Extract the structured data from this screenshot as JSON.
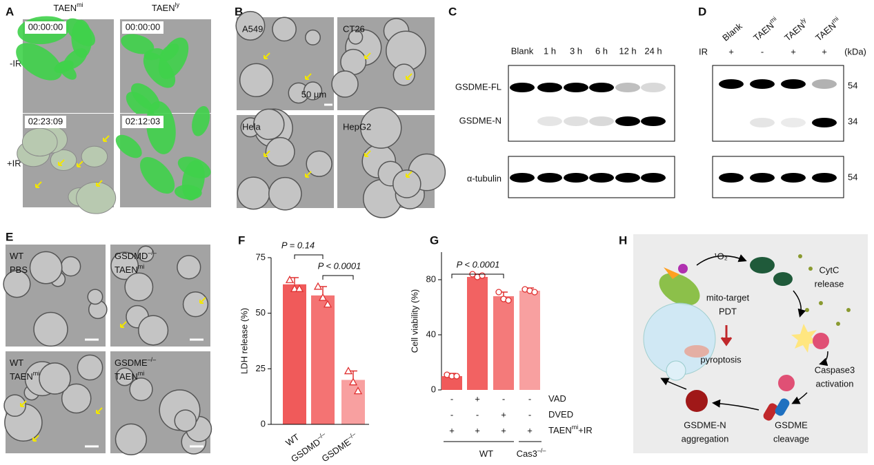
{
  "panel_a": {
    "label": "A",
    "columns": [
      {
        "text": "TAEN",
        "sup": "mi"
      },
      {
        "text": "TAEN",
        "sup": "ly"
      }
    ],
    "rows": [
      "-IR",
      "+IR"
    ],
    "timestamps": [
      "00:00:00",
      "00:00:00",
      "02:23:09",
      "02:12:03"
    ]
  },
  "panel_b": {
    "label": "B",
    "cells": [
      "A549",
      "CT26",
      "Hela",
      "HepG2"
    ],
    "scale_bar": "50 μm"
  },
  "panel_c": {
    "label": "C",
    "lanes": [
      "Blank",
      "1 h",
      "3 h",
      "6 h",
      "12 h",
      "24 h"
    ],
    "rows": [
      "GSDME-FL",
      "GSDME-N",
      "α-tubulin"
    ]
  },
  "panel_d": {
    "label": "D",
    "lanes": [
      {
        "text": "Blank"
      },
      {
        "text": "TAEN",
        "sup": "mi"
      },
      {
        "text": "TAEN",
        "sup": "ly"
      },
      {
        "text": "TAEN",
        "sup": "mi"
      }
    ],
    "ir_label": "IR",
    "ir": [
      "+",
      "-",
      "+",
      "+"
    ],
    "unit": "(kDa)",
    "markers": [
      "54",
      "34",
      "54"
    ]
  },
  "panel_e": {
    "label": "E",
    "cells": [
      [
        {
          "text": "WT"
        },
        {
          "text": "PBS"
        }
      ],
      [
        {
          "text": "GSDMD",
          "sup": "–/–"
        },
        {
          "text": "TAEN",
          "sup": "mi"
        }
      ],
      [
        {
          "text": "WT"
        },
        {
          "text": "TAEN",
          "sup": "mi"
        }
      ],
      [
        {
          "text": "GSDME",
          "sup": "–/–"
        },
        {
          "text": "TAEN",
          "sup": "mi"
        }
      ]
    ]
  },
  "chart_data": [
    {
      "type": "bar",
      "label": "F",
      "ylabel": "LDH release (%)",
      "categories": [
        {
          "text": "WT"
        },
        {
          "text": "GSDMD",
          "sup": "–/–"
        },
        {
          "text": "GSDME",
          "sup": "–/–"
        }
      ],
      "values": [
        63,
        58,
        20
      ],
      "errors": [
        3,
        4,
        4
      ],
      "points": [
        [
          65,
          61,
          61
        ],
        [
          62,
          57,
          54
        ],
        [
          24,
          19,
          15
        ]
      ],
      "colors": [
        "#f05a5a",
        "#f47373",
        "#f8a0a0"
      ],
      "ylim": [
        0,
        75
      ],
      "yticks": [
        0,
        25,
        50,
        75
      ],
      "annotations": [
        "P = 0.14",
        "P < 0.0001"
      ]
    },
    {
      "type": "bar",
      "label": "G",
      "ylabel": "Cell viability (%)",
      "values": [
        10,
        82,
        68,
        72
      ],
      "errors": [
        2,
        2,
        3,
        2
      ],
      "points": [
        [
          11,
          10,
          10
        ],
        [
          84,
          82,
          83
        ],
        [
          71,
          66,
          65
        ],
        [
          73,
          72,
          71
        ]
      ],
      "colors": [
        "#f05a5a",
        "#f26262",
        "#f47a7a",
        "#f8a0a0"
      ],
      "ylim": [
        0,
        100
      ],
      "yticks": [
        0,
        40,
        80
      ],
      "annotations": [
        "P < 0.0001"
      ],
      "treatments": [
        {
          "name": {
            "text": "VAD"
          },
          "signs": [
            "-",
            "+",
            "-",
            "-"
          ]
        },
        {
          "name": {
            "text": "DVED"
          },
          "signs": [
            "-",
            "-",
            "+",
            "-"
          ]
        },
        {
          "name": {
            "text": "TAEN",
            "sup": "mi",
            "after": "+IR"
          },
          "signs": [
            "+",
            "+",
            "+",
            "+"
          ]
        }
      ],
      "groups": [
        {
          "text": "WT"
        },
        {
          "text": "Cas3",
          "sup": "–/–"
        }
      ]
    }
  ],
  "panel_h": {
    "label": "H",
    "singlet_oxygen": "¹O₂",
    "cytc": [
      "CytC",
      "release"
    ],
    "pdt": [
      "mito-target",
      "PDT"
    ],
    "pyroptosis": "pyroptosis",
    "caspase": [
      "Caspase3",
      "activation"
    ],
    "cleavage": [
      "GSDME",
      "cleavage"
    ],
    "aggregation": [
      "GSDME-N",
      "aggregation"
    ]
  }
}
